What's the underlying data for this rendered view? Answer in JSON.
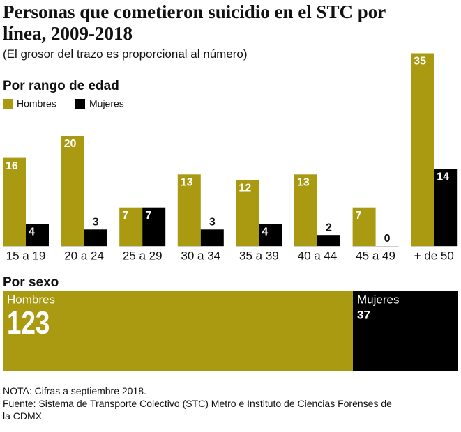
{
  "header": {
    "title": "Personas que cometieron suicidio en el STC por línea, 2009-2018",
    "subtitle": "(El grosor del trazo es proporcional al número)"
  },
  "chart_data": [
    {
      "type": "bar",
      "title": "Por rango de edad",
      "categories": [
        "15 a 19",
        "20 a 24",
        "25 a 29",
        "30 a 34",
        "35 a 39",
        "40 a 44",
        "45 a 49",
        "+ de 50"
      ],
      "series": [
        {
          "name": "Hombres",
          "color": "#a99a12",
          "values": [
            16,
            20,
            7,
            13,
            12,
            13,
            7,
            35
          ]
        },
        {
          "name": "Mujeres",
          "color": "#000000",
          "values": [
            4,
            3,
            7,
            3,
            4,
            2,
            0,
            14
          ]
        }
      ]
    },
    {
      "type": "stacked_hbar",
      "title": "Por sexo",
      "series": [
        {
          "name": "Hombres",
          "color": "#a99a12",
          "values": [
            123
          ]
        },
        {
          "name": "Mujeres",
          "color": "#000000",
          "values": [
            37
          ]
        }
      ]
    }
  ],
  "notes": [
    "NOTA: Cifras a septiembre 2018.",
    "Fuente: Sistema de Transporte Colectivo (STC) Metro e Instituto de Ciencias Forenses de la CDMX"
  ]
}
